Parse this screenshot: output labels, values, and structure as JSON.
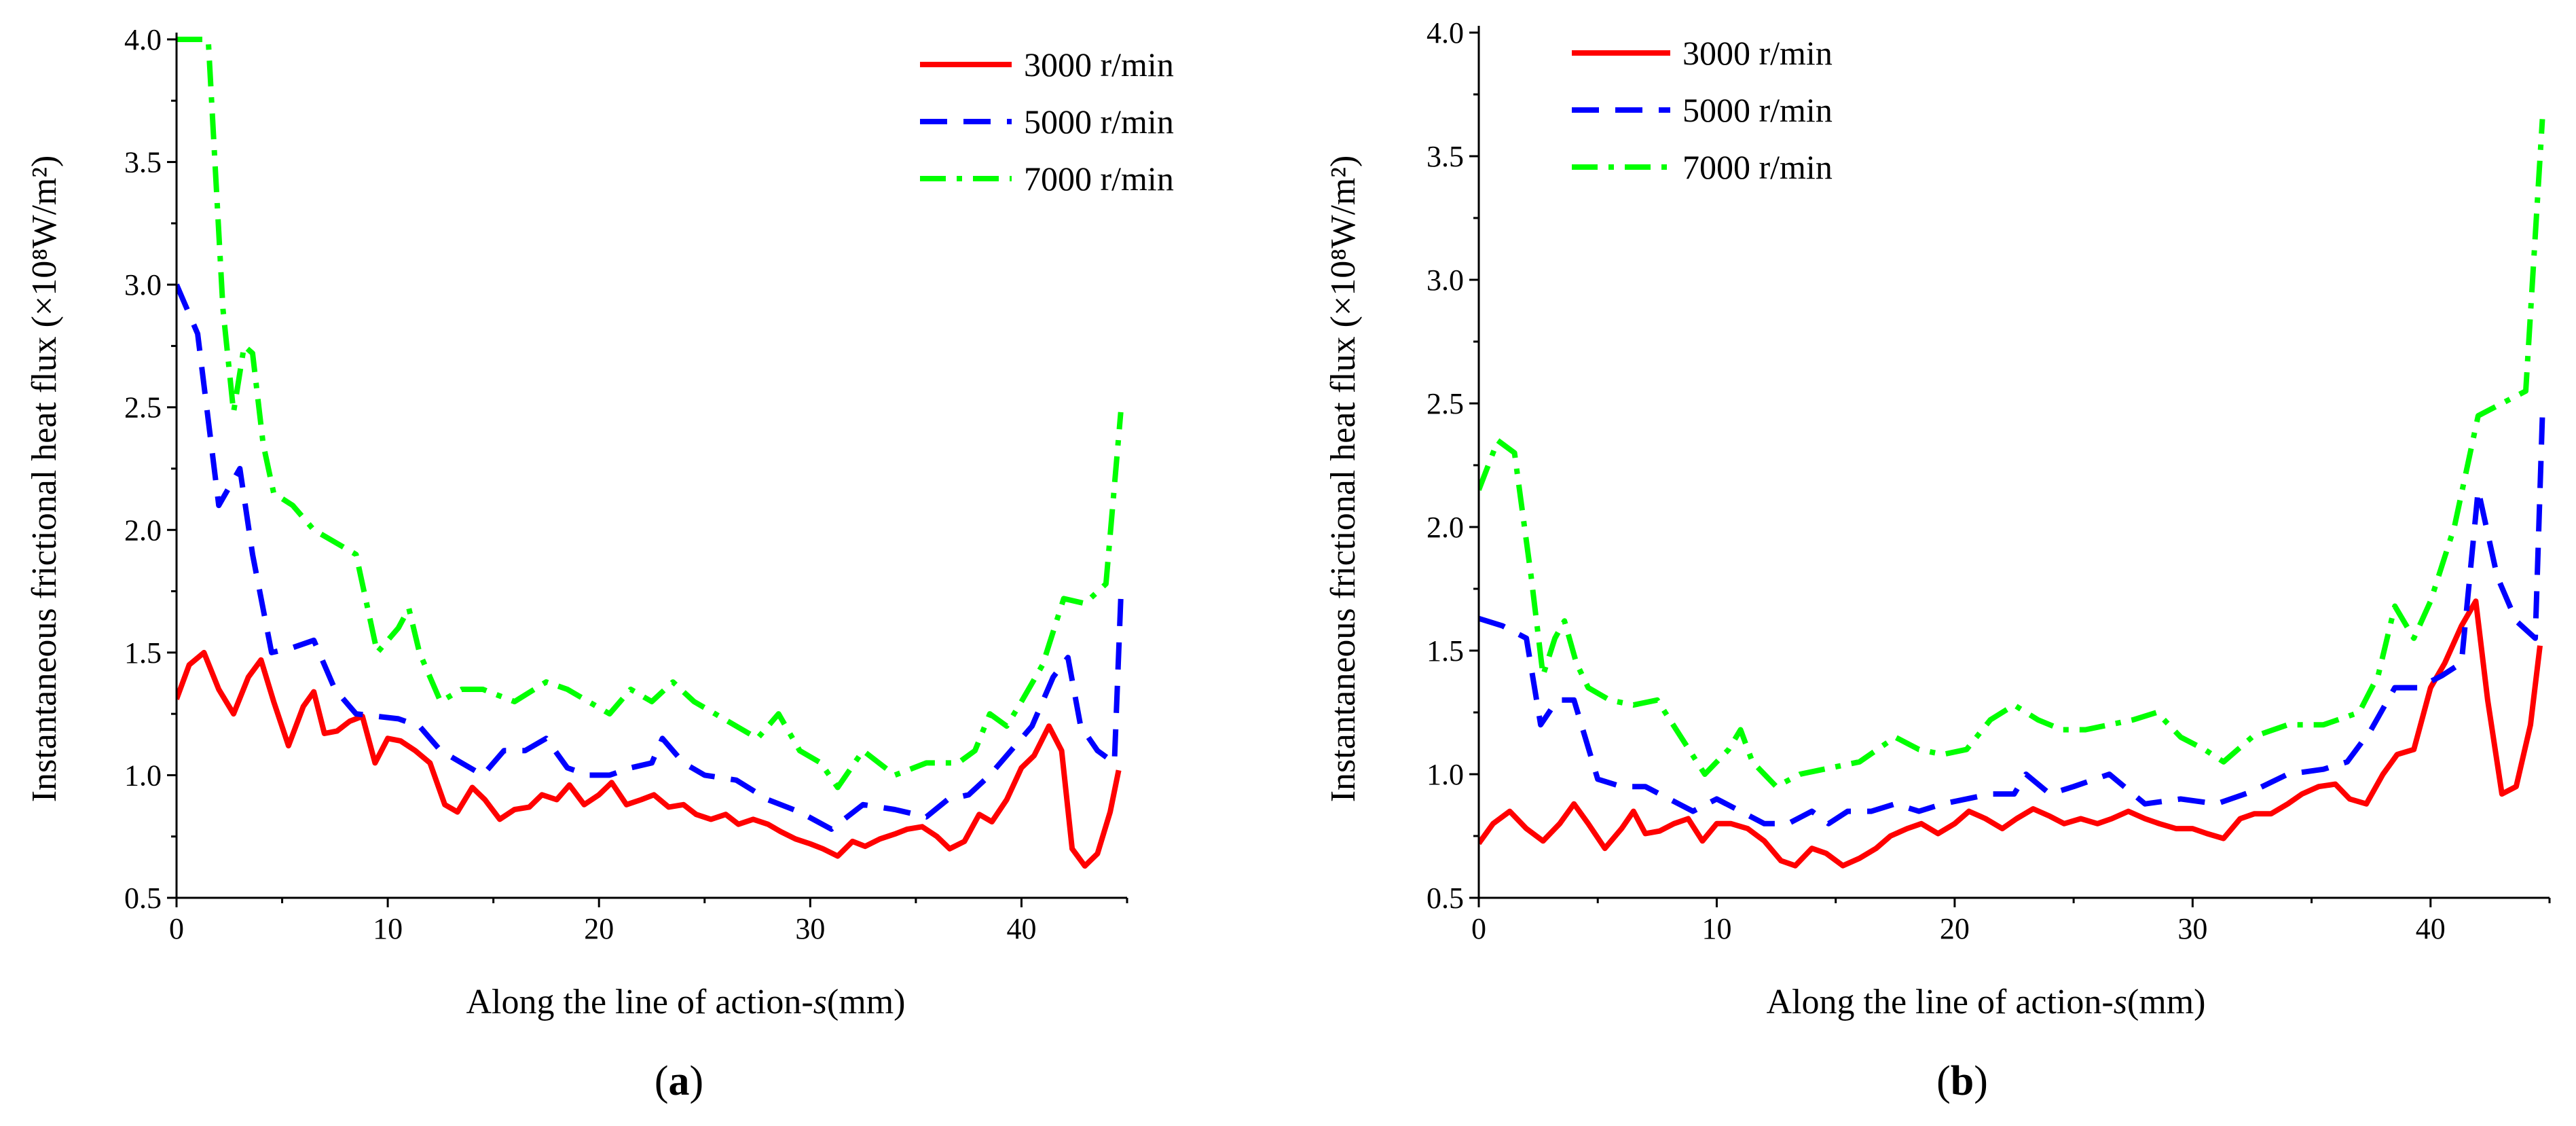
{
  "chart_data": [
    {
      "panel": "a",
      "type": "line",
      "xlabel": "Along the line of action-",
      "xlabel_var": "s",
      "xlabel_unit": "(mm)",
      "ylabel": "Instantaneous frictional heat flux (×10⁸W/m²)",
      "xlim": [
        0,
        45
      ],
      "ylim": [
        0.5,
        4.0
      ],
      "xticks": [
        0,
        10,
        20,
        30,
        40
      ],
      "yticks": [
        0.5,
        1.0,
        1.5,
        2.0,
        2.5,
        3.0,
        3.5,
        4.0
      ],
      "legend_position": "top-right",
      "series": [
        {
          "name": "3000 r/min",
          "color": "#ff0000",
          "dash": "solid",
          "x": [
            0,
            0.6,
            1.3,
            2.0,
            2.7,
            3.4,
            4.0,
            4.6,
            5.3,
            6.0,
            6.5,
            7.0,
            7.6,
            8.2,
            8.8,
            9.4,
            10.0,
            10.6,
            11.3,
            12.0,
            12.7,
            13.3,
            14.0,
            14.6,
            15.3,
            16.0,
            16.7,
            17.3,
            18.0,
            18.6,
            19.3,
            20.0,
            20.6,
            21.3,
            22.0,
            22.6,
            23.3,
            24.0,
            24.6,
            25.3,
            26.0,
            26.6,
            27.3,
            28.0,
            28.6,
            29.3,
            30.0,
            30.6,
            31.3,
            32.0,
            32.6,
            33.3,
            34.0,
            34.6,
            35.3,
            36.0,
            36.6,
            37.3,
            38.0,
            38.6,
            39.3,
            40.0,
            40.6,
            41.3,
            41.9,
            42.4,
            43.0,
            43.6,
            44.2,
            44.6
          ],
          "y": [
            1.31,
            1.45,
            1.5,
            1.35,
            1.25,
            1.4,
            1.47,
            1.3,
            1.12,
            1.28,
            1.34,
            1.17,
            1.18,
            1.22,
            1.24,
            1.05,
            1.15,
            1.14,
            1.1,
            1.05,
            0.88,
            0.85,
            0.95,
            0.9,
            0.82,
            0.86,
            0.87,
            0.92,
            0.9,
            0.96,
            0.88,
            0.92,
            0.97,
            0.88,
            0.9,
            0.92,
            0.87,
            0.88,
            0.84,
            0.82,
            0.84,
            0.8,
            0.82,
            0.8,
            0.77,
            0.74,
            0.72,
            0.7,
            0.67,
            0.73,
            0.71,
            0.74,
            0.76,
            0.78,
            0.79,
            0.75,
            0.7,
            0.73,
            0.84,
            0.81,
            0.9,
            1.03,
            1.08,
            1.2,
            1.1,
            0.7,
            0.63,
            0.68,
            0.85,
            1.02
          ]
        },
        {
          "name": "5000 r/min",
          "color": "#0000ff",
          "dash": "dashed",
          "x": [
            0,
            1.0,
            2.0,
            3.0,
            3.6,
            4.5,
            5.5,
            6.5,
            7.5,
            8.5,
            9.5,
            10.5,
            11.5,
            12.5,
            13.5,
            14.5,
            15.5,
            16.5,
            17.5,
            18.5,
            19.5,
            20.5,
            21.5,
            22.5,
            23.0,
            24.0,
            25.0,
            26.5,
            28.0,
            29.5,
            31.0,
            32.5,
            34.0,
            35.5,
            36.5,
            37.5,
            38.5,
            39.5,
            40.5,
            41.5,
            42.2,
            42.8,
            43.6,
            44.4,
            44.7
          ],
          "y": [
            3.0,
            2.8,
            2.1,
            2.25,
            1.9,
            1.5,
            1.52,
            1.55,
            1.35,
            1.25,
            1.24,
            1.23,
            1.2,
            1.1,
            1.05,
            1.0,
            1.1,
            1.1,
            1.15,
            1.03,
            1.0,
            1.0,
            1.03,
            1.05,
            1.15,
            1.05,
            1.0,
            0.98,
            0.9,
            0.85,
            0.78,
            0.88,
            0.86,
            0.83,
            0.9,
            0.92,
            1.0,
            1.1,
            1.2,
            1.4,
            1.48,
            1.2,
            1.1,
            1.05,
            1.72
          ]
        },
        {
          "name": "7000 r/min",
          "color": "#00ff00",
          "dash": "dashdot",
          "x": [
            0,
            0.8,
            1.5,
            2.2,
            2.7,
            3.2,
            3.6,
            4.1,
            4.6,
            5.5,
            6.5,
            7.5,
            8.5,
            9.5,
            10.5,
            11.0,
            11.5,
            12.5,
            13.5,
            14.5,
            16.0,
            17.5,
            18.5,
            19.5,
            20.5,
            21.5,
            22.5,
            23.5,
            24.5,
            25.5,
            26.5,
            27.5,
            28.5,
            29.5,
            30.5,
            31.3,
            32.5,
            34.0,
            35.5,
            37.0,
            37.8,
            38.5,
            39.3,
            40.0,
            41.0,
            42.0,
            43.0,
            44.0,
            44.7
          ],
          "y": [
            4.0,
            4.0,
            4.0,
            2.9,
            2.48,
            2.75,
            2.72,
            2.35,
            2.15,
            2.1,
            2.0,
            1.95,
            1.9,
            1.5,
            1.6,
            1.68,
            1.5,
            1.3,
            1.35,
            1.35,
            1.3,
            1.38,
            1.35,
            1.3,
            1.25,
            1.35,
            1.3,
            1.38,
            1.3,
            1.25,
            1.2,
            1.15,
            1.25,
            1.1,
            1.05,
            0.95,
            1.1,
            1.0,
            1.05,
            1.05,
            1.1,
            1.25,
            1.2,
            1.3,
            1.45,
            1.72,
            1.7,
            1.78,
            2.48
          ]
        }
      ]
    },
    {
      "panel": "b",
      "type": "line",
      "xlabel": "Along the line of action-",
      "xlabel_var": "s",
      "xlabel_unit": "(mm)",
      "ylabel": "Instantaneous frictional heat flux (×10⁸W/m²)",
      "xlim": [
        0,
        45
      ],
      "ylim": [
        0.5,
        4.0
      ],
      "xticks": [
        0,
        10,
        20,
        30,
        40
      ],
      "yticks": [
        0.5,
        1.0,
        1.5,
        2.0,
        2.5,
        3.0,
        3.5,
        4.0
      ],
      "legend_position": "top-left",
      "series": [
        {
          "name": "3000 r/min",
          "color": "#ff0000",
          "dash": "solid",
          "x": [
            0,
            0.6,
            1.3,
            2.0,
            2.7,
            3.4,
            4.0,
            4.6,
            5.3,
            6.0,
            6.5,
            7.0,
            7.6,
            8.2,
            8.8,
            9.4,
            10.0,
            10.6,
            11.3,
            12.0,
            12.7,
            13.3,
            14.0,
            14.6,
            15.3,
            16.0,
            16.7,
            17.3,
            18.0,
            18.6,
            19.3,
            20.0,
            20.6,
            21.3,
            22.0,
            22.6,
            23.3,
            24.0,
            24.6,
            25.3,
            26.0,
            26.6,
            27.3,
            28.0,
            28.6,
            29.3,
            30.0,
            30.6,
            31.3,
            32.0,
            32.6,
            33.3,
            34.0,
            34.6,
            35.3,
            36.0,
            36.6,
            37.3,
            38.0,
            38.6,
            39.3,
            40.0,
            40.6,
            41.3,
            41.9,
            42.4,
            43.0,
            43.6,
            44.2,
            44.6
          ],
          "y": [
            0.72,
            0.8,
            0.85,
            0.78,
            0.73,
            0.8,
            0.88,
            0.8,
            0.7,
            0.78,
            0.85,
            0.76,
            0.77,
            0.8,
            0.82,
            0.73,
            0.8,
            0.8,
            0.78,
            0.73,
            0.65,
            0.63,
            0.7,
            0.68,
            0.63,
            0.66,
            0.7,
            0.75,
            0.78,
            0.8,
            0.76,
            0.8,
            0.85,
            0.82,
            0.78,
            0.82,
            0.86,
            0.83,
            0.8,
            0.82,
            0.8,
            0.82,
            0.85,
            0.82,
            0.8,
            0.78,
            0.78,
            0.76,
            0.74,
            0.82,
            0.84,
            0.84,
            0.88,
            0.92,
            0.95,
            0.96,
            0.9,
            0.88,
            1.0,
            1.08,
            1.1,
            1.35,
            1.45,
            1.6,
            1.7,
            1.3,
            0.92,
            0.95,
            1.2,
            1.52
          ]
        },
        {
          "name": "5000 r/min",
          "color": "#0000ff",
          "dash": "dashed",
          "x": [
            0,
            1.0,
            2.0,
            2.6,
            3.3,
            4.0,
            5.0,
            6.0,
            7.0,
            8.0,
            9.0,
            10.0,
            11.0,
            12.0,
            13.0,
            14.0,
            14.7,
            15.5,
            16.5,
            17.5,
            18.5,
            19.5,
            20.5,
            21.5,
            22.5,
            23.0,
            24.0,
            25.0,
            26.5,
            28.0,
            29.5,
            31.0,
            32.5,
            34.0,
            35.5,
            36.5,
            37.5,
            38.5,
            39.5,
            40.5,
            41.3,
            42.0,
            42.8,
            43.6,
            44.4,
            44.7
          ],
          "y": [
            1.63,
            1.6,
            1.55,
            1.2,
            1.3,
            1.3,
            0.98,
            0.95,
            0.95,
            0.9,
            0.85,
            0.9,
            0.85,
            0.8,
            0.8,
            0.85,
            0.8,
            0.85,
            0.85,
            0.88,
            0.85,
            0.88,
            0.9,
            0.92,
            0.92,
            1.0,
            0.92,
            0.95,
            1.0,
            0.88,
            0.9,
            0.88,
            0.93,
            1.0,
            1.02,
            1.05,
            1.18,
            1.35,
            1.35,
            1.4,
            1.45,
            2.15,
            1.8,
            1.62,
            1.55,
            2.45
          ]
        },
        {
          "name": "7000 r/min",
          "color": "#00ff00",
          "dash": "dashdot",
          "x": [
            0,
            0.8,
            1.5,
            2.2,
            2.7,
            3.2,
            3.6,
            4.1,
            4.6,
            5.5,
            6.5,
            7.5,
            8.5,
            9.5,
            10.5,
            11.0,
            11.5,
            12.5,
            13.5,
            14.5,
            16.0,
            17.5,
            18.5,
            19.5,
            20.5,
            21.5,
            22.5,
            23.5,
            24.5,
            25.5,
            26.5,
            27.5,
            28.5,
            29.5,
            30.5,
            31.3,
            32.5,
            34.0,
            35.5,
            37.0,
            37.8,
            38.5,
            39.3,
            40.0,
            41.0,
            42.0,
            43.0,
            44.0,
            44.7
          ],
          "y": [
            2.15,
            2.35,
            2.3,
            1.8,
            1.4,
            1.55,
            1.62,
            1.45,
            1.35,
            1.3,
            1.28,
            1.3,
            1.15,
            1.0,
            1.1,
            1.18,
            1.05,
            0.95,
            1.0,
            1.02,
            1.05,
            1.15,
            1.1,
            1.08,
            1.1,
            1.22,
            1.28,
            1.22,
            1.18,
            1.18,
            1.2,
            1.22,
            1.25,
            1.15,
            1.1,
            1.05,
            1.15,
            1.2,
            1.2,
            1.25,
            1.4,
            1.68,
            1.55,
            1.7,
            2.0,
            2.45,
            2.5,
            2.55,
            3.65
          ]
        }
      ]
    }
  ],
  "panels": {
    "a": {
      "label_open": "(",
      "label_letter": "a",
      "label_close": ")"
    },
    "b": {
      "label_open": "(",
      "label_letter": "b",
      "label_close": ")"
    }
  }
}
